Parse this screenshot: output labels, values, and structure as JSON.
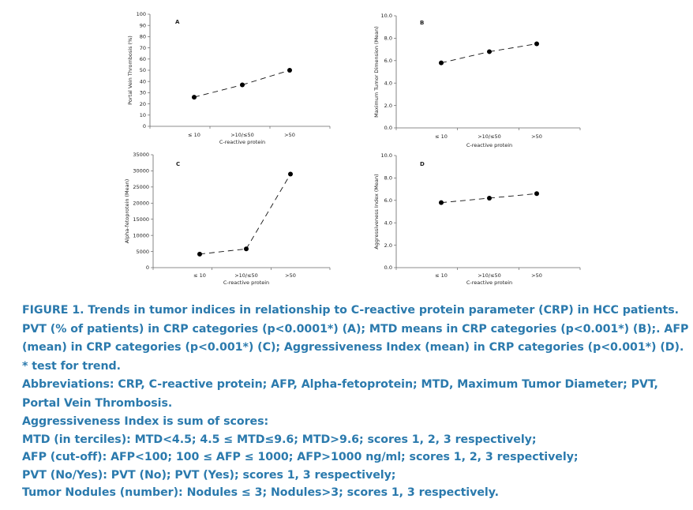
{
  "chart_data": [
    {
      "type": "line",
      "panel": "A",
      "categories": [
        "≤ 10",
        ">10/≤50",
        ">50"
      ],
      "values": [
        26,
        37,
        50
      ],
      "ylabel": "Portal Vein Thrombosis (%)",
      "xlabel": "C-reactive protein",
      "ylim": [
        0,
        100
      ],
      "yticks": [
        "0",
        "10",
        "20",
        "30",
        "40",
        "50",
        "60",
        "70",
        "80",
        "90",
        "100"
      ]
    },
    {
      "type": "line",
      "panel": "B",
      "categories": [
        "≤ 10",
        ">10/≤50",
        ">50"
      ],
      "values": [
        5.8,
        6.8,
        7.5
      ],
      "ylabel": "Maximum Tumor Dimension (Mean)",
      "xlabel": "C-reactive protein",
      "ylim": [
        0,
        10
      ],
      "yticks": [
        "0.0",
        "2.0",
        "4.0",
        "6.0",
        "8.0",
        "10.0"
      ]
    },
    {
      "type": "line",
      "panel": "C",
      "categories": [
        "≤ 10",
        ">10/≤50",
        ">50"
      ],
      "values": [
        4200,
        5800,
        29000
      ],
      "ylabel": "Alpha-fetoprotein (Mean)",
      "xlabel": "C-reactive protein",
      "ylim": [
        0,
        35000
      ],
      "yticks": [
        "0",
        "5000",
        "10000",
        "15000",
        "20000",
        "25000",
        "30000",
        "35000"
      ]
    },
    {
      "type": "line",
      "panel": "D",
      "categories": [
        "≤ 10",
        ">10/≤50",
        ">50"
      ],
      "values": [
        5.8,
        6.2,
        6.6
      ],
      "ylabel": "Aggressiveness Index (Mean)",
      "xlabel": "C-reactive protein",
      "ylim": [
        0,
        10
      ],
      "yticks": [
        "0.0",
        "2.0",
        "4.0",
        "6.0",
        "8.0",
        "10.0"
      ]
    }
  ],
  "caption": {
    "figure": "FIGURE 1. Trends in tumor indices in relationship to C-reactive protein parameter (CRP) in HCC patients. PVT (% of patients) in CRP categories (p<0.0001*) (A); MTD means in CRP categories (p<0.001*) (B);. AFP (mean) in CRP categories (p<0.001*) (C); Aggressiveness Index (mean) in CRP categories (p<0.001*) (D).",
    "test_note": "* test for trend.",
    "abbreviations": "Abbreviations:  CRP, C-reactive protein; AFP, Alpha-fetoprotein;  MTD, Maximum Tumor Diameter;  PVT, Portal Vein Thrombosis.",
    "ai_title": "Aggressiveness Index is sum of scores:",
    "mtd": "MTD (in terciles): MTD<4.5; 4.5 ≤ MTD≤9.6; MTD>9.6; scores 1, 2, 3 respectively;",
    "afp": "AFP (cut-off): AFP<100; 100 ≤ AFP ≤ 1000; AFP>1000 ng/ml; scores 1, 2, 3 respectively;",
    "pvt": "PVT (No/Yes): PVT (No); PVT (Yes); scores 1, 3 respectively;",
    "nodules": "Tumor Nodules (number): Nodules ≤ 3; Nodules>3; scores 1, 3 respectively."
  }
}
